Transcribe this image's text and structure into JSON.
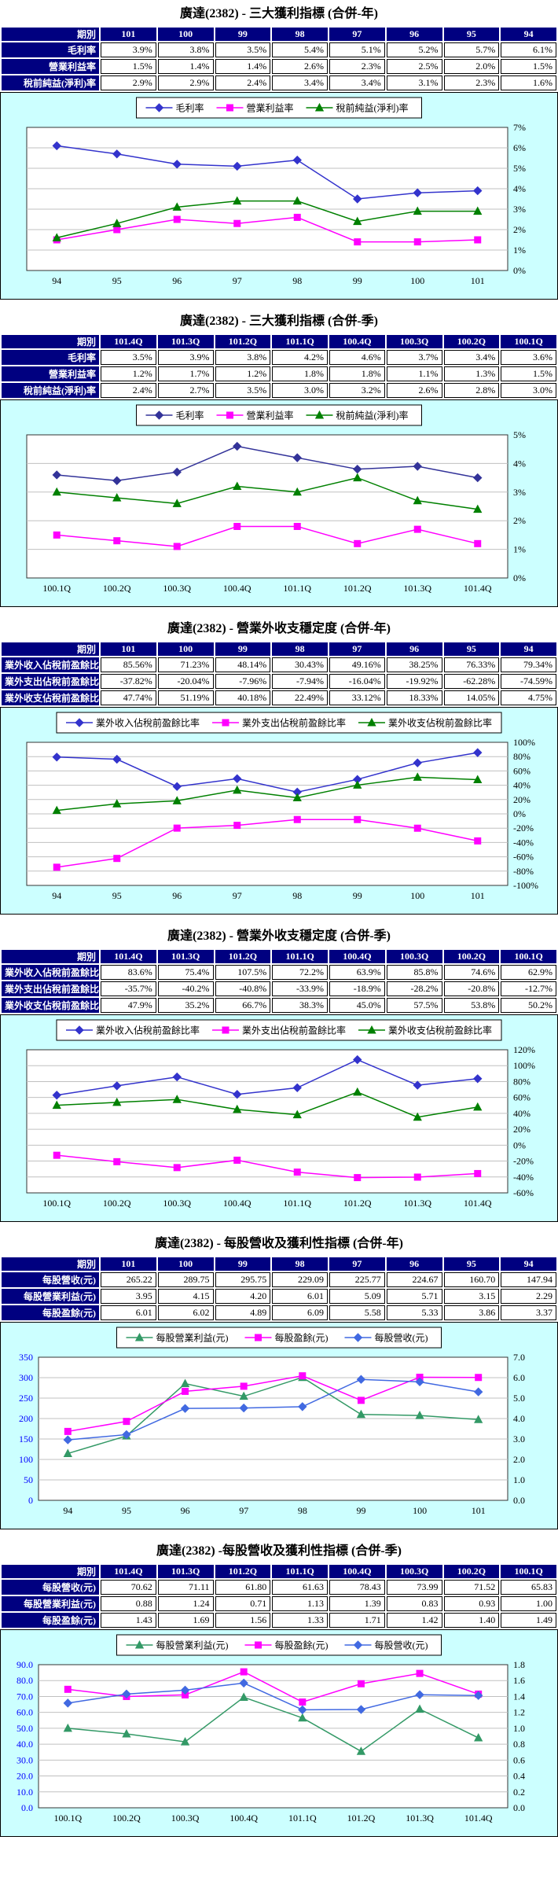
{
  "stock": {
    "name": "廣達",
    "code": "2382"
  },
  "colors": {
    "table_header_bg": "#000080",
    "table_header_text": "#FFFFFF",
    "chart_bg": "#CCFFFF",
    "grid_line": "#C0C0C0",
    "left_axis_text": "#0000FF",
    "blue_series": "#3333CC",
    "magenta_series": "#FF00FF",
    "green_series": "#008000",
    "eps_blue": "#4169E1",
    "eps_green": "#339966"
  },
  "sections": [
    {
      "title": "廣達(2382) - 三大獲利指標 (合併-年)",
      "table": {
        "header": [
          "期別",
          "101",
          "100",
          "99",
          "98",
          "97",
          "96",
          "95",
          "94"
        ],
        "rows": [
          {
            "label": "毛利率",
            "values": [
              "3.9%",
              "3.8%",
              "3.5%",
              "5.4%",
              "5.1%",
              "5.2%",
              "5.7%",
              "6.1%"
            ]
          },
          {
            "label": "營業利益率",
            "values": [
              "1.5%",
              "1.4%",
              "1.4%",
              "2.6%",
              "2.3%",
              "2.5%",
              "2.0%",
              "1.5%"
            ]
          },
          {
            "label": "稅前純益(淨利)率",
            "values": [
              "2.9%",
              "2.9%",
              "2.4%",
              "3.4%",
              "3.4%",
              "3.1%",
              "2.3%",
              "1.6%"
            ]
          }
        ]
      }
    },
    {
      "title": "廣達(2382) - 三大獲利指標 (合併-季)",
      "table": {
        "header": [
          "期別",
          "101.4Q",
          "101.3Q",
          "101.2Q",
          "101.1Q",
          "100.4Q",
          "100.3Q",
          "100.2Q",
          "100.1Q"
        ],
        "rows": [
          {
            "label": "毛利率",
            "values": [
              "3.5%",
              "3.9%",
              "3.8%",
              "4.2%",
              "4.6%",
              "3.7%",
              "3.4%",
              "3.6%"
            ]
          },
          {
            "label": "營業利益率",
            "values": [
              "1.2%",
              "1.7%",
              "1.2%",
              "1.8%",
              "1.8%",
              "1.1%",
              "1.3%",
              "1.5%"
            ]
          },
          {
            "label": "稅前純益(淨利)率",
            "values": [
              "2.4%",
              "2.7%",
              "3.5%",
              "3.0%",
              "3.2%",
              "2.6%",
              "2.8%",
              "3.0%"
            ]
          }
        ]
      }
    },
    {
      "title": "廣達(2382) - 營業外收支穩定度 (合併-年)",
      "table": {
        "header": [
          "期別",
          "101",
          "100",
          "99",
          "98",
          "97",
          "96",
          "95",
          "94"
        ],
        "rows": [
          {
            "label": "業外收入佔稅前盈餘比率",
            "values": [
              "85.56%",
              "71.23%",
              "48.14%",
              "30.43%",
              "49.16%",
              "38.25%",
              "76.33%",
              "79.34%"
            ]
          },
          {
            "label": "業外支出佔稅前盈餘比率",
            "values": [
              "-37.82%",
              "-20.04%",
              "-7.96%",
              "-7.94%",
              "-16.04%",
              "-19.92%",
              "-62.28%",
              "-74.59%"
            ]
          },
          {
            "label": "業外收支佔稅前盈餘比率",
            "values": [
              "47.74%",
              "51.19%",
              "40.18%",
              "22.49%",
              "33.12%",
              "18.33%",
              "14.05%",
              "4.75%"
            ]
          }
        ]
      }
    },
    {
      "title": "廣達(2382) - 營業外收支穩定度 (合併-季)",
      "table": {
        "header": [
          "期別",
          "101.4Q",
          "101.3Q",
          "101.2Q",
          "101.1Q",
          "100.4Q",
          "100.3Q",
          "100.2Q",
          "100.1Q"
        ],
        "rows": [
          {
            "label": "業外收入佔稅前盈餘比率",
            "values": [
              "83.6%",
              "75.4%",
              "107.5%",
              "72.2%",
              "63.9%",
              "85.8%",
              "74.6%",
              "62.9%"
            ]
          },
          {
            "label": "業外支出佔稅前盈餘比率",
            "values": [
              "-35.7%",
              "-40.2%",
              "-40.8%",
              "-33.9%",
              "-18.9%",
              "-28.2%",
              "-20.8%",
              "-12.7%"
            ]
          },
          {
            "label": "業外收支佔稅前盈餘比率",
            "values": [
              "47.9%",
              "35.2%",
              "66.7%",
              "38.3%",
              "45.0%",
              "57.5%",
              "53.8%",
              "50.2%"
            ]
          }
        ]
      }
    },
    {
      "title": "廣達(2382) - 每股營收及獲利性指標 (合併-年)",
      "table": {
        "header": [
          "期別",
          "101",
          "100",
          "99",
          "98",
          "97",
          "96",
          "95",
          "94"
        ],
        "rows": [
          {
            "label": "每股營收(元)",
            "values": [
              "265.22",
              "289.75",
              "295.75",
              "229.09",
              "225.77",
              "224.67",
              "160.70",
              "147.94"
            ]
          },
          {
            "label": "每股營業利益(元)",
            "values": [
              "3.95",
              "4.15",
              "4.20",
              "6.01",
              "5.09",
              "5.71",
              "3.15",
              "2.29"
            ]
          },
          {
            "label": "每股盈餘(元)",
            "values": [
              "6.01",
              "6.02",
              "4.89",
              "6.09",
              "5.58",
              "5.33",
              "3.86",
              "3.37"
            ]
          }
        ]
      }
    },
    {
      "title": "廣達(2382) -每股營收及獲利性指標 (合併-季)",
      "table": {
        "header": [
          "期別",
          "101.4Q",
          "101.3Q",
          "101.2Q",
          "101.1Q",
          "100.4Q",
          "100.3Q",
          "100.2Q",
          "100.1Q"
        ],
        "rows": [
          {
            "label": "每股營收(元)",
            "values": [
              "70.62",
              "71.11",
              "61.80",
              "61.63",
              "78.43",
              "73.99",
              "71.52",
              "65.83"
            ]
          },
          {
            "label": "每股營業利益(元)",
            "values": [
              "0.88",
              "1.24",
              "0.71",
              "1.13",
              "1.39",
              "0.83",
              "0.93",
              "1.00"
            ]
          },
          {
            "label": "每股盈餘(元)",
            "values": [
              "1.43",
              "1.69",
              "1.56",
              "1.33",
              "1.71",
              "1.42",
              "1.40",
              "1.49"
            ]
          }
        ]
      }
    }
  ],
  "chart_data": [
    {
      "type": "line",
      "title": "廣達(2382) - 三大獲利指標 (合併-年)",
      "x": [
        "94",
        "95",
        "96",
        "97",
        "98",
        "99",
        "100",
        "101"
      ],
      "legend_position": "top",
      "grid": true,
      "axes": {
        "right": {
          "min": 0,
          "max": 7,
          "step": 1,
          "format": "pct",
          "color": "#000000"
        }
      },
      "series": [
        {
          "name": "毛利率",
          "axis": "right",
          "color": "#3333CC",
          "marker": "diamond",
          "values": [
            6.1,
            5.7,
            5.2,
            5.1,
            5.4,
            3.5,
            3.8,
            3.9
          ]
        },
        {
          "name": "營業利益率",
          "axis": "right",
          "color": "#FF00FF",
          "marker": "square",
          "values": [
            1.5,
            2.0,
            2.5,
            2.3,
            2.6,
            1.4,
            1.4,
            1.5
          ]
        },
        {
          "name": "稅前純益(淨利)率",
          "axis": "right",
          "color": "#008000",
          "marker": "triangle",
          "values": [
            1.6,
            2.3,
            3.1,
            3.4,
            3.4,
            2.4,
            2.9,
            2.9
          ]
        }
      ]
    },
    {
      "type": "line",
      "title": "廣達(2382) - 三大獲利指標 (合併-季)",
      "x": [
        "100.1Q",
        "100.2Q",
        "100.3Q",
        "100.4Q",
        "101.1Q",
        "101.2Q",
        "101.3Q",
        "101.4Q"
      ],
      "legend_position": "top",
      "grid": true,
      "axes": {
        "right": {
          "min": 0,
          "max": 5,
          "step": 1,
          "format": "pct",
          "color": "#000000"
        }
      },
      "series": [
        {
          "name": "毛利率",
          "axis": "right",
          "color": "#333399",
          "marker": "diamond",
          "values": [
            3.6,
            3.4,
            3.7,
            4.6,
            4.2,
            3.8,
            3.9,
            3.5
          ]
        },
        {
          "name": "營業利益率",
          "axis": "right",
          "color": "#FF00FF",
          "marker": "square",
          "values": [
            1.5,
            1.3,
            1.1,
            1.8,
            1.8,
            1.2,
            1.7,
            1.2
          ]
        },
        {
          "name": "稅前純益(淨利)率",
          "axis": "right",
          "color": "#008000",
          "marker": "triangle",
          "values": [
            3.0,
            2.8,
            2.6,
            3.2,
            3.0,
            3.5,
            2.7,
            2.4
          ]
        }
      ]
    },
    {
      "type": "line",
      "title": "廣達(2382) - 營業外收支穩定度 (合併-年)",
      "x": [
        "94",
        "95",
        "96",
        "97",
        "98",
        "99",
        "100",
        "101"
      ],
      "legend_position": "top",
      "grid": true,
      "axes": {
        "right": {
          "min": -100,
          "max": 100,
          "step": 20,
          "format": "pct",
          "color": "#000000"
        }
      },
      "series": [
        {
          "name": "業外收入佔稅前盈餘比率",
          "axis": "right",
          "color": "#3333CC",
          "marker": "diamond",
          "values": [
            79.34,
            76.33,
            38.25,
            49.16,
            30.43,
            48.14,
            71.23,
            85.56
          ]
        },
        {
          "name": "業外支出佔稅前盈餘比率",
          "axis": "right",
          "color": "#FF00FF",
          "marker": "square",
          "values": [
            -74.59,
            -62.28,
            -19.92,
            -16.04,
            -7.94,
            -7.96,
            -20.04,
            -37.82
          ]
        },
        {
          "name": "業外收支佔稅前盈餘比率",
          "axis": "right",
          "color": "#008000",
          "marker": "triangle",
          "values": [
            4.75,
            14.05,
            18.33,
            33.12,
            22.49,
            40.18,
            51.19,
            47.74
          ]
        }
      ]
    },
    {
      "type": "line",
      "title": "廣達(2382) - 營業外收支穩定度 (合併-季)",
      "x": [
        "100.1Q",
        "100.2Q",
        "100.3Q",
        "100.4Q",
        "101.1Q",
        "101.2Q",
        "101.3Q",
        "101.4Q"
      ],
      "legend_position": "top",
      "grid": true,
      "axes": {
        "right": {
          "min": -60,
          "max": 120,
          "step": 20,
          "format": "pct",
          "color": "#000000"
        }
      },
      "series": [
        {
          "name": "業外收入佔稅前盈餘比率",
          "axis": "right",
          "color": "#3333CC",
          "marker": "diamond",
          "values": [
            62.9,
            74.6,
            85.8,
            63.9,
            72.2,
            107.5,
            75.4,
            83.6
          ]
        },
        {
          "name": "業外支出佔稅前盈餘比率",
          "axis": "right",
          "color": "#FF00FF",
          "marker": "square",
          "values": [
            -12.7,
            -20.8,
            -28.2,
            -18.9,
            -33.9,
            -40.8,
            -40.2,
            -35.7
          ]
        },
        {
          "name": "業外收支佔稅前盈餘比率",
          "axis": "right",
          "color": "#008000",
          "marker": "triangle",
          "values": [
            50.2,
            53.8,
            57.5,
            45.0,
            38.3,
            66.7,
            35.2,
            47.9
          ]
        }
      ]
    },
    {
      "type": "line",
      "title": "廣達(2382) - 每股營收及獲利性指標 (合併-年)",
      "x": [
        "94",
        "95",
        "96",
        "97",
        "98",
        "99",
        "100",
        "101"
      ],
      "legend_position": "top",
      "grid": true,
      "axes": {
        "left": {
          "min": 0,
          "max": 350,
          "step": 50,
          "format": "int",
          "color": "#0000FF"
        },
        "right": {
          "min": 0,
          "max": 7,
          "step": 1,
          "format": "dec1",
          "color": "#000000"
        }
      },
      "series": [
        {
          "name": "每股營業利益(元)",
          "axis": "right",
          "color": "#339966",
          "marker": "triangle",
          "values": [
            2.29,
            3.15,
            5.71,
            5.09,
            6.01,
            4.2,
            4.15,
            3.95
          ]
        },
        {
          "name": "每股盈餘(元)",
          "axis": "right",
          "color": "#FF00FF",
          "marker": "square",
          "values": [
            3.37,
            3.86,
            5.33,
            5.58,
            6.09,
            4.89,
            6.02,
            6.01
          ]
        },
        {
          "name": "每股營收(元)",
          "axis": "left",
          "color": "#4169E1",
          "marker": "diamond",
          "values": [
            147.94,
            160.7,
            224.67,
            225.77,
            229.09,
            295.75,
            289.75,
            265.22
          ]
        }
      ]
    },
    {
      "type": "line",
      "title": "廣達(2382) -每股營收及獲利性指標 (合併-季)",
      "x": [
        "100.1Q",
        "100.2Q",
        "100.3Q",
        "100.4Q",
        "101.1Q",
        "101.2Q",
        "101.3Q",
        "101.4Q"
      ],
      "legend_position": "top",
      "grid": true,
      "axes": {
        "left": {
          "min": 0,
          "max": 90,
          "step": 10,
          "format": "dec1",
          "color": "#0000FF"
        },
        "right": {
          "min": 0,
          "max": 1.8,
          "step": 0.2,
          "format": "dec1",
          "color": "#000000"
        }
      },
      "series": [
        {
          "name": "每股營業利益(元)",
          "axis": "right",
          "color": "#339966",
          "marker": "triangle",
          "values": [
            1.0,
            0.93,
            0.83,
            1.39,
            1.13,
            0.71,
            1.24,
            0.88
          ]
        },
        {
          "name": "每股盈餘(元)",
          "axis": "right",
          "color": "#FF00FF",
          "marker": "square",
          "values": [
            1.49,
            1.4,
            1.42,
            1.71,
            1.33,
            1.56,
            1.69,
            1.43
          ]
        },
        {
          "name": "每股營收(元)",
          "axis": "left",
          "color": "#4169E1",
          "marker": "diamond",
          "values": [
            65.83,
            71.52,
            73.99,
            78.43,
            61.63,
            61.8,
            71.11,
            70.62
          ]
        }
      ]
    }
  ]
}
